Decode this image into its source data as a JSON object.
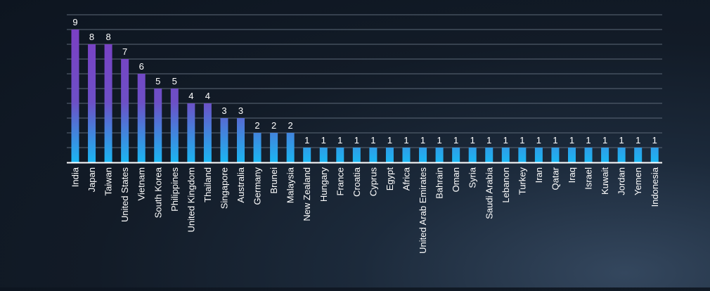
{
  "chart_data": {
    "type": "bar",
    "title": "",
    "xlabel": "",
    "ylabel": "",
    "ylim": [
      0,
      10
    ],
    "grid": true,
    "grid_step": 1,
    "show_data_labels": true,
    "categories": [
      "India",
      "Japan",
      "Taiwan",
      "United States",
      "Vietnam",
      "South Korea",
      "Philippines",
      "United Kingdom",
      "Thailand",
      "Singapore",
      "Australia",
      "Germany",
      "Brunei",
      "Malaysia",
      "New Zealand",
      "Hungary",
      "France",
      "Croatia",
      "Cyprus",
      "Egypt",
      "Africa",
      "United Arab Emirates",
      "Bahrain",
      "Oman",
      "Syria",
      "Saudi Arabia",
      "Lebanon",
      "Turkey",
      "Iran",
      "Qatar",
      "Iraq",
      "Israel",
      "Kuwait",
      "Jordan",
      "Yemen",
      "Indonesia"
    ],
    "values": [
      9,
      8,
      8,
      7,
      6,
      5,
      5,
      4,
      4,
      3,
      3,
      2,
      2,
      2,
      1,
      1,
      1,
      1,
      1,
      1,
      1,
      1,
      1,
      1,
      1,
      1,
      1,
      1,
      1,
      1,
      1,
      1,
      1,
      1,
      1,
      1
    ],
    "colors": {
      "bar_top": "#7b3fc4",
      "bar_bottom": "#1ab6f2",
      "gridline": "#5c6877",
      "axis": "#ffffff",
      "text": "#ffffff"
    }
  }
}
